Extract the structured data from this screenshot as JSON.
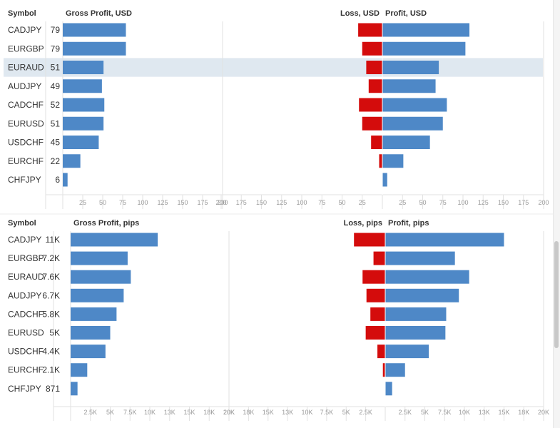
{
  "colors": {
    "profit_bar": "#4e88c7",
    "loss_bar": "#d40c0c",
    "highlight_row": "#dfe8f0",
    "grid": "#e2e2e2",
    "zero_line": "#cfcfcf"
  },
  "chart_data": [
    {
      "type": "bar",
      "symbol_header": "Symbol",
      "gross_header": "Gross Profit, USD",
      "loss_header": "Loss, USD",
      "profit_header": "Profit, USD",
      "categories": [
        "CADJPY",
        "EURGBP",
        "EURAUD",
        "AUDJPY",
        "CADCHF",
        "EURUSD",
        "USDCHF",
        "EURCHF",
        "CHFJPY"
      ],
      "value_labels": [
        "79",
        "79",
        "51",
        "49",
        "52",
        "51",
        "45",
        "22",
        "6"
      ],
      "highlighted_category": "EURAUD",
      "series": [
        {
          "name": "Gross Profit, USD",
          "values": [
            79,
            79,
            51,
            49,
            52,
            51,
            45,
            22,
            6
          ]
        },
        {
          "name": "Loss, USD",
          "values": [
            30,
            25,
            20,
            17,
            29,
            25,
            14,
            4,
            0
          ]
        },
        {
          "name": "Profit, USD",
          "values": [
            108,
            103,
            70,
            66,
            80,
            75,
            59,
            26,
            6
          ]
        }
      ],
      "gross_axis": {
        "ticks": [
          "25",
          "50",
          "75",
          "100",
          "125",
          "150",
          "175",
          "200"
        ],
        "range": [
          0,
          200
        ]
      },
      "loss_axis": {
        "ticks": [
          "200",
          "175",
          "150",
          "125",
          "100",
          "75",
          "50",
          "25"
        ],
        "range": [
          0,
          200
        ]
      },
      "profit_axis": {
        "ticks": [
          "25",
          "50",
          "75",
          "100",
          "125",
          "150",
          "175",
          "200"
        ],
        "range": [
          0,
          200
        ]
      }
    },
    {
      "type": "bar",
      "symbol_header": "Symbol",
      "gross_header": "Gross Profit, pips",
      "loss_header": "Loss, pips",
      "profit_header": "Profit, pips",
      "categories": [
        "CADJPY",
        "EURGBP",
        "EURAUD",
        "AUDJPY",
        "CADCHF",
        "EURUSD",
        "USDCHF",
        "EURCHF",
        "CHFJPY"
      ],
      "value_labels": [
        "11K",
        "7.2K",
        "7.6K",
        "6.7K",
        "5.8K",
        "5K",
        "4.4K",
        "2.1K",
        "871"
      ],
      "highlighted_category": "",
      "series": [
        {
          "name": "Gross Profit, pips",
          "values": [
            11000,
            7200,
            7600,
            6700,
            5800,
            5000,
            4400,
            2100,
            871
          ]
        },
        {
          "name": "Loss, pips",
          "values": [
            4000,
            1500,
            2900,
            2400,
            1900,
            2500,
            1000,
            300,
            0
          ]
        },
        {
          "name": "Profit, pips",
          "values": [
            15000,
            8800,
            10600,
            9300,
            7700,
            7600,
            5500,
            2500,
            871
          ]
        }
      ],
      "gross_axis": {
        "ticks": [
          "2.5K",
          "5K",
          "7.5K",
          "10K",
          "13K",
          "15K",
          "18K",
          "20K"
        ],
        "range": [
          0,
          20000
        ]
      },
      "loss_axis": {
        "ticks": [
          "20K",
          "18K",
          "15K",
          "13K",
          "10K",
          "7.5K",
          "5K",
          "2.5K"
        ],
        "range": [
          0,
          20000
        ]
      },
      "profit_axis": {
        "ticks": [
          "2.5K",
          "5K",
          "7.5K",
          "10K",
          "13K",
          "15K",
          "18K",
          "20K"
        ],
        "range": [
          0,
          20000
        ]
      }
    }
  ]
}
